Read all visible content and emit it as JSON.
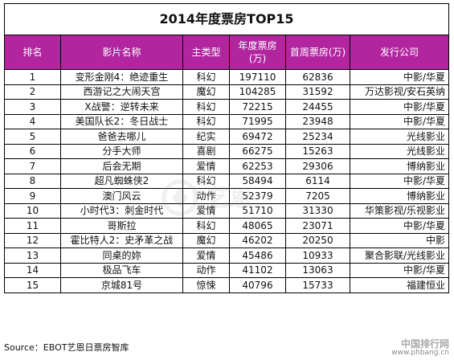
{
  "title": "2014年度票房TOP15",
  "columns": [
    "排名",
    "影片名称",
    "主类型",
    "年度票房(万)",
    "首周票房(万)",
    "发行公司"
  ],
  "rows": [
    [
      "1",
      "变形金刚4：绝迹重生",
      "科幻",
      "197110",
      "62836",
      "中影/华夏"
    ],
    [
      "2",
      "西游记之大闹天宫",
      "魔幻",
      "104285",
      "31592",
      "万达影视/安石英纳"
    ],
    [
      "3",
      "X战警：逆转未来",
      "科幻",
      "72215",
      "24455",
      "中影/华夏"
    ],
    [
      "4",
      "美国队长2：冬日战士",
      "科幻",
      "71995",
      "23948",
      "中影/华夏"
    ],
    [
      "5",
      "爸爸去哪儿",
      "纪实",
      "69472",
      "25234",
      "光线影业"
    ],
    [
      "6",
      "分手大师",
      "喜剧",
      "66275",
      "15263",
      "光线影业"
    ],
    [
      "7",
      "后会无期",
      "爱情",
      "62253",
      "29306",
      "博纳影业"
    ],
    [
      "8",
      "超凡蜘蛛侠2",
      "科幻",
      "58494",
      "6114",
      "中影/华夏"
    ],
    [
      "9",
      "澳门风云",
      "动作",
      "52379",
      "7205",
      "博纳影业"
    ],
    [
      "10",
      "小时代3：刺金时代",
      "爱情",
      "51710",
      "31330",
      "华策影视/乐视影业"
    ],
    [
      "11",
      "哥斯拉",
      "科幻",
      "48065",
      "23071",
      "中影/华夏"
    ],
    [
      "12",
      "霍比特人2：史矛革之战",
      "魔幻",
      "46202",
      "20250",
      "中影"
    ],
    [
      "13",
      "同桌的妳",
      "爱情",
      "45486",
      "10933",
      "聚合影联/光线影业"
    ],
    [
      "14",
      "极品飞车",
      "动作",
      "41102",
      "13063",
      "中影/华夏"
    ],
    [
      "15",
      "京城81号",
      "惊悚",
      "40796",
      "15733",
      "福建恒业"
    ]
  ],
  "source": "Source：EBOT艺恩日票房智库",
  "watermark": {
    "center": "艺恩",
    "corner_line1": "中国排行网",
    "corner_line2": "www.phbang.cn"
  },
  "colors": {
    "header_bg": "#b1269f",
    "header_text": "#ffffff",
    "border": "#000000"
  }
}
